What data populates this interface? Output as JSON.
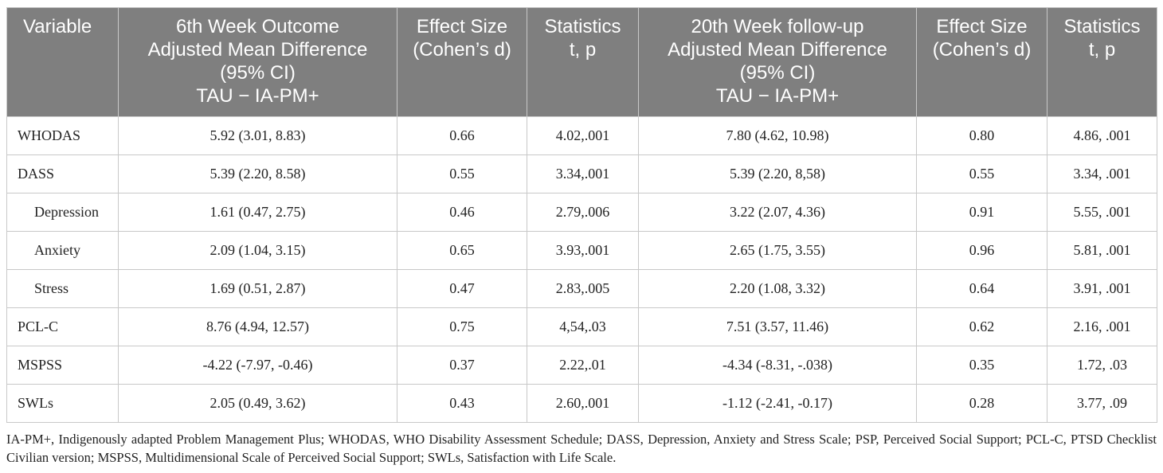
{
  "table": {
    "headers": [
      [
        "Variable"
      ],
      [
        "6th Week Outcome",
        "Adjusted Mean Difference",
        "(95% CI)",
        "TAU − IA-PM+"
      ],
      [
        "Effect Size",
        "(Cohen’s d)"
      ],
      [
        "Statistics",
        "t, p"
      ],
      [
        "20th Week follow-up",
        "Adjusted Mean Difference",
        "(95% CI)",
        "TAU − IA-PM+"
      ],
      [
        "Effect Size",
        "(Cohen’s d)"
      ],
      [
        "Statistics",
        "t, p"
      ]
    ],
    "rows": [
      [
        "WHODAS",
        "5.92 (3.01, 8.83)",
        "0.66",
        "4.02,.001",
        "7.80 (4.62, 10.98)",
        "0.80",
        "4.86, .001"
      ],
      [
        "DASS",
        "5.39 (2.20, 8.58)",
        "0.55",
        "3.34,.001",
        "5.39 (2.20, 8,58)",
        "0.55",
        "3.34, .001"
      ],
      [
        "Depression",
        "1.61 (0.47, 2.75)",
        "0.46",
        "2.79,.006",
        "3.22 (2.07, 4.36)",
        "0.91",
        "5.55, .001"
      ],
      [
        "Anxiety",
        "2.09 (1.04, 3.15)",
        "0.65",
        "3.93,.001",
        "2.65 (1.75, 3.55)",
        "0.96",
        "5.81, .001"
      ],
      [
        "Stress",
        "1.69 (0.51, 2.87)",
        "0.47",
        "2.83,.005",
        "2.20 (1.08, 3.32)",
        "0.64",
        "3.91, .001"
      ],
      [
        "PCL-C",
        "8.76 (4.94, 12.57)",
        "0.75",
        "4,54,.03",
        "7.51 (3.57, 11.46)",
        "0.62",
        "2.16, .001"
      ],
      [
        "MSPSS",
        "-4.22 (-7.97, -0.46)",
        "0.37",
        "2.22,.01",
        "-4.34 (-8.31, -.038)",
        "0.35",
        "1.72, .03"
      ],
      [
        "SWLs",
        "2.05 (0.49, 3.62)",
        "0.43",
        "2.60,.001",
        "-1.12 (-2.41, -0.17)",
        "0.28",
        "3.77, .09"
      ]
    ]
  },
  "footnote": "IA-PM+, Indigenously adapted Problem Management Plus; WHODAS, WHO Disability Assessment Schedule; DASS, Depression, Anxiety and Stress Scale; PSP, Perceived Social Support; PCL-C, PTSD Checklist Civilian version; MSPSS, Multidimensional Scale of Perceived Social Support; SWLs, Satisfaction with Life Scale.",
  "colors": {
    "header_bg": "#7f7f7f",
    "header_text": "#ffffff",
    "border": "#c8c8c8"
  }
}
